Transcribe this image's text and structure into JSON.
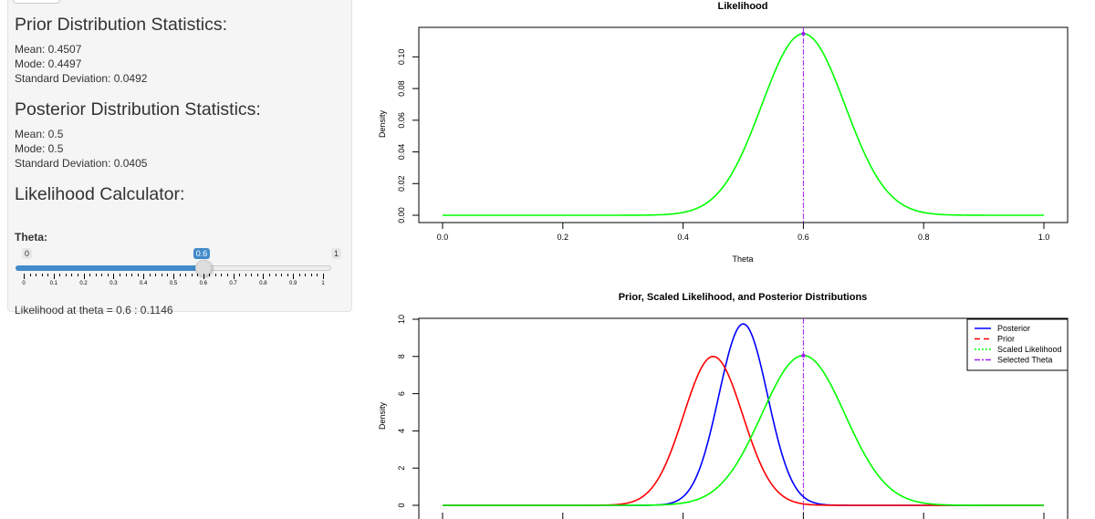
{
  "sidebar": {
    "prior": {
      "title": "Prior Distribution Statistics:",
      "mean": "Mean: 0.4507",
      "mode": "Mode: 0.4497",
      "sd": "Standard Deviation: 0.0492"
    },
    "posterior": {
      "title": "Posterior Distribution Statistics:",
      "mean": "Mean: 0.5",
      "mode": "Mode: 0.5",
      "sd": "Standard Deviation: 0.0405"
    },
    "calculator": {
      "title": "Likelihood Calculator:",
      "slider_label": "Theta:",
      "min": "0",
      "max": "1",
      "value": "0.6",
      "value_fraction": 0.6,
      "grid_labels": [
        "0",
        "0.1",
        "0.2",
        "0.3",
        "0.4",
        "0.5",
        "0.6",
        "0.7",
        "0.8",
        "0.9",
        "1"
      ],
      "result": "Likelihood at theta = 0.6 : 0.1146"
    }
  },
  "colors": {
    "slider_accent": "#428bca",
    "posterior": "#0000ff",
    "prior": "#ff0000",
    "scaled_likelihood": "#00ff00",
    "selected_theta": "#a020f0"
  },
  "chart_data": [
    {
      "type": "line",
      "title": "Likelihood",
      "xlabel": "Theta",
      "ylabel": "Density",
      "xlim": [
        0,
        1
      ],
      "ylim": [
        0,
        0.1146
      ],
      "x_ticks": [
        "0.0",
        "0.2",
        "0.4",
        "0.6",
        "0.8",
        "1.0"
      ],
      "y_ticks": [
        "0.00",
        "0.02",
        "0.04",
        "0.06",
        "0.08",
        "0.10"
      ],
      "series": [
        {
          "name": "Likelihood",
          "color": "#00ff00",
          "mean": 0.6,
          "sd": 0.0693,
          "peak": 0.1146,
          "line": "solid"
        }
      ],
      "vline": {
        "x": 0.6,
        "color": "#a020f0"
      },
      "marker": {
        "x": 0.6,
        "y": 0.1146
      }
    },
    {
      "type": "line",
      "title": "Prior, Scaled Likelihood, and Posterior Distributions",
      "xlabel": "",
      "ylabel": "Density",
      "xlim": [
        0,
        1
      ],
      "ylim": [
        0,
        10
      ],
      "y_ticks": [
        "0",
        "2",
        "4",
        "6",
        "8",
        "10"
      ],
      "series": [
        {
          "name": "Posterior",
          "color": "#0000ff",
          "mean": 0.5,
          "sd": 0.0405,
          "peak": 9.75,
          "line": "solid"
        },
        {
          "name": "Prior",
          "color": "#ff0000",
          "mean": 0.45,
          "sd": 0.0492,
          "peak": 8.0,
          "line": "dashed"
        },
        {
          "name": "Scaled Likelihood",
          "color": "#00ff00",
          "mean": 0.6,
          "sd": 0.0693,
          "peak": 8.05,
          "line": "dotted"
        },
        {
          "name": "Selected Theta",
          "color": "#a020f0",
          "line": "dashdot"
        }
      ],
      "vline": {
        "x": 0.6,
        "color": "#a020f0"
      },
      "marker": {
        "x": 0.6,
        "y": 8.05
      }
    }
  ]
}
